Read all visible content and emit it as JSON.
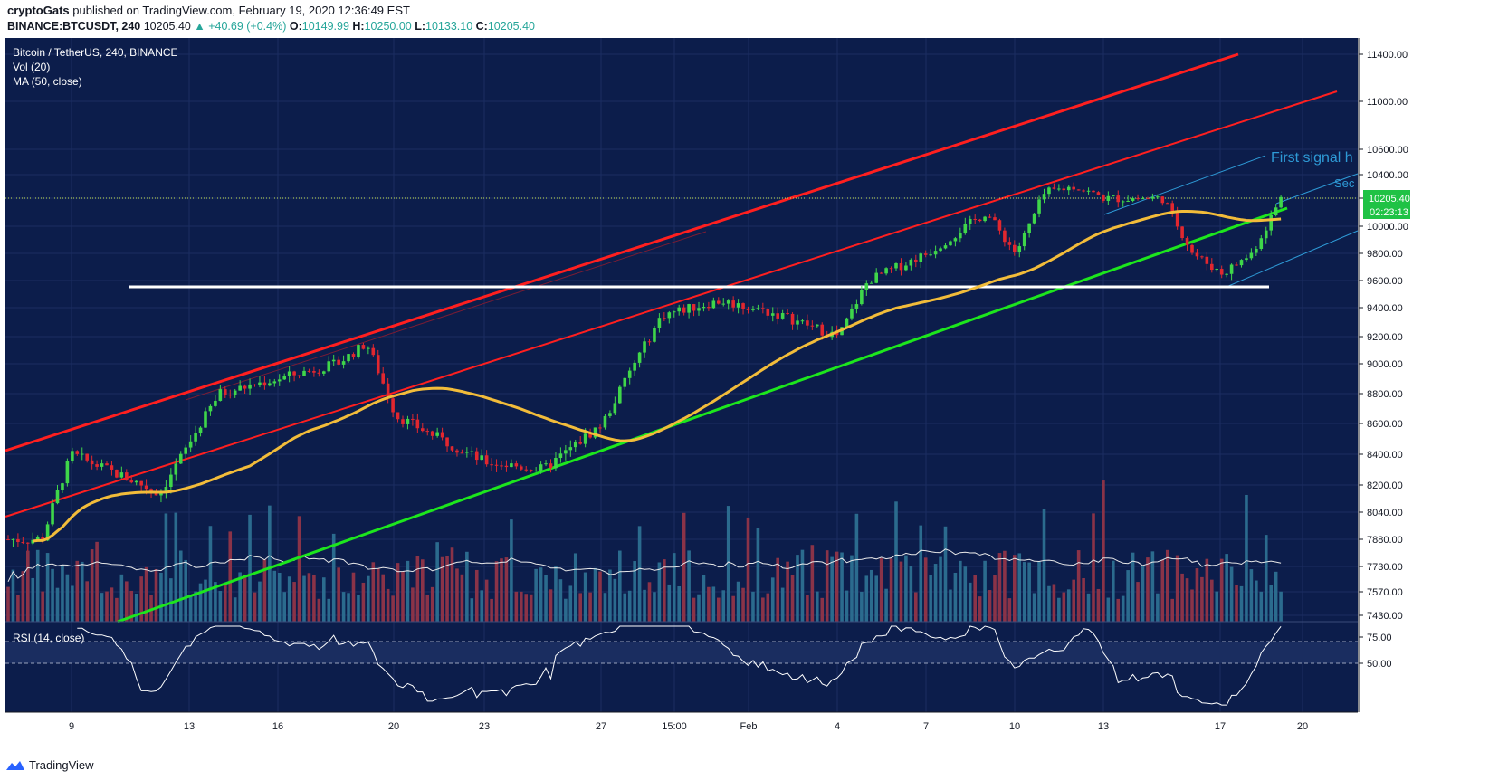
{
  "header": {
    "author": "cryptoGats",
    "published": "published on TradingView.com, February 19, 2020 12:36:49 EST",
    "symbol": "BINANCE:BTCUSDT, 240",
    "last": "10205.40",
    "change": "+40.69 (+0.4%)",
    "o_label": "O:",
    "o": "10149.99",
    "h_label": "H:",
    "h": "10250.00",
    "l_label": "L:",
    "l": "10133.10",
    "c_label": "C:",
    "c": "10205.40"
  },
  "legend": {
    "title": "Bitcoin / TetherUS, 240, BINANCE",
    "vol": "Vol (20)",
    "ma": "MA (50, close)",
    "rsi": "RSI (14, close)"
  },
  "annotations": {
    "first_signal": "First signal h",
    "second": "Sec"
  },
  "price_tag": {
    "value": "10205.40",
    "countdown": "02:23:13",
    "color": "#1fc245"
  },
  "footer": {
    "brand": "TradingView"
  },
  "colors": {
    "background": "#0c1d4b",
    "up": "#3fd64a",
    "down": "#e2272f",
    "ma": "#f2bc3a",
    "channel_red": "#ff1f1f",
    "support_green": "#1de61d",
    "level_white": "#ffffff",
    "vol_up": "#2b6b8e",
    "vol_down": "#8a3348",
    "annotation": "#2e9ad6"
  },
  "chart_data": {
    "type": "candlestick",
    "title": "Bitcoin / TetherUS, 240, BINANCE",
    "price_axis": {
      "ticks": [
        11400,
        11000,
        10600,
        10400,
        10200,
        10000,
        9800,
        9600,
        9400,
        9200,
        9000,
        8800,
        8600,
        8400,
        8200,
        8040,
        7880,
        7730,
        7570,
        7430
      ],
      "labels": [
        "11400.00",
        "11000.00",
        "10600.00",
        "10400.00",
        "10200.00",
        "10000.00",
        "9800.00",
        "9600.00",
        "9400.00",
        "9200.00",
        "9000.00",
        "8800.00",
        "8600.00",
        "8400.00",
        "8200.00",
        "8040.00",
        "7880.00",
        "7730.00",
        "7570.00",
        "7430.00"
      ]
    },
    "rsi_axis": {
      "labels": [
        "75.00",
        "50.00"
      ],
      "levels": [
        75,
        50
      ]
    },
    "x_labels": [
      "9",
      "13",
      "16",
      "20",
      "23",
      "27",
      "15:00",
      "Feb",
      "4",
      "7",
      "10",
      "13",
      "17",
      "20"
    ],
    "key_points": [
      {
        "t": "Jan 8",
        "price": 7880
      },
      {
        "t": "Jan 9",
        "price": 8400
      },
      {
        "t": "Jan 12",
        "price": 8150
      },
      {
        "t": "Jan 14",
        "price": 8800
      },
      {
        "t": "Jan 18",
        "price": 9000
      },
      {
        "t": "Jan 19",
        "price": 9150
      },
      {
        "t": "Jan 20",
        "price": 8650
      },
      {
        "t": "Jan 23",
        "price": 8350
      },
      {
        "t": "Jan 25",
        "price": 8300
      },
      {
        "t": "Jan 27",
        "price": 8600
      },
      {
        "t": "Jan 29",
        "price": 9350
      },
      {
        "t": "Jan 31",
        "price": 9450
      },
      {
        "t": "Feb 2",
        "price": 9350
      },
      {
        "t": "Feb 4",
        "price": 9200
      },
      {
        "t": "Feb 5",
        "price": 9600
      },
      {
        "t": "Feb 7",
        "price": 9800
      },
      {
        "t": "Feb 9",
        "price": 10100
      },
      {
        "t": "Feb 10",
        "price": 9800
      },
      {
        "t": "Feb 11",
        "price": 10250
      },
      {
        "t": "Feb 12",
        "price": 10300
      },
      {
        "t": "Feb 13",
        "price": 10200
      },
      {
        "t": "Feb 15",
        "price": 10200
      },
      {
        "t": "Feb 16",
        "price": 9800
      },
      {
        "t": "Feb 17",
        "price": 9650
      },
      {
        "t": "Feb 18",
        "price": 9800
      },
      {
        "t": "Feb 19",
        "price": 10205.4
      }
    ],
    "levels": {
      "horizontal_support": 9560,
      "last_price": 10205.4
    }
  }
}
